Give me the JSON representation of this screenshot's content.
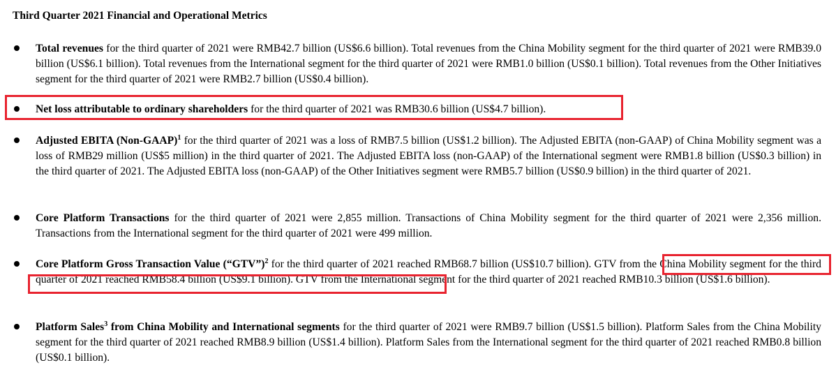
{
  "heading": "Third Quarter 2021 Financial and Operational Metrics",
  "bullets": [
    {
      "lead": "Total revenues",
      "text": " for the third quarter of 2021 were RMB42.7 billion (US$6.6 billion). Total revenues from the China Mobility segment for the third quarter of 2021 were RMB39.0 billion (US$6.1 billion). Total revenues from the International segment for the third quarter of 2021 were RMB1.0 billion (US$0.1 billion). Total revenues from the Other Initiatives segment for the third quarter of 2021 were RMB2.7 billion (US$0.4 billion)."
    },
    {
      "lead": "Net loss attributable to ordinary shareholders",
      "text": " for the third quarter of 2021 was RMB30.6 billion (US$4.7 billion)."
    },
    {
      "lead": "Adjusted EBITA (Non-GAAP)",
      "sup": "1",
      "text": " for the third quarter of 2021 was a loss of RMB7.5 billion (US$1.2 billion). The Adjusted EBITA (non-GAAP) of China Mobility segment was a loss of RMB29 million (US$5 million) in the third quarter of 2021. The Adjusted EBITA loss (non-GAAP) of the International segment were RMB1.8 billion (US$0.3 billion) in the third quarter of 2021. The Adjusted EBITA loss (non-GAAP) of the Other Initiatives segment were RMB5.7 billion (US$0.9 billion) in the third quarter of 2021."
    },
    {
      "lead": "Core Platform Transactions",
      "text": " for the third quarter of 2021 were 2,855 million. Transactions of China Mobility segment for the third quarter of 2021 were 2,356 million. Transactions from the International segment for the third quarter of 2021 were 499 million."
    },
    {
      "lead": "Core Platform Gross Transaction Value (“GTV”)",
      "sup": "2",
      "text": " for the third quarter of 2021 reached RMB68.7 billion (US$10.7 billion). GTV from the China Mobility segment for the third quarter of 2021 reached RMB58.4 billion (US$9.1 billion). GTV from the International segment for the third quarter of 2021 reached RMB10.3 billion (US$1.6 billion)."
    },
    {
      "lead": "Platform Sales",
      "sup": "3",
      "lead2": " from China Mobility and International segments",
      "text": " for the third quarter of 2021 were RMB9.7 billion (US$1.5 billion). Platform Sales from the China Mobility segment for the third quarter of 2021 reached RMB8.9 billion (US$1.4 billion). Platform Sales from the International segment for the third quarter of 2021 reached RMB0.8 billion (US$0.1 billion)."
    }
  ],
  "highlight_color": "#e8232f"
}
